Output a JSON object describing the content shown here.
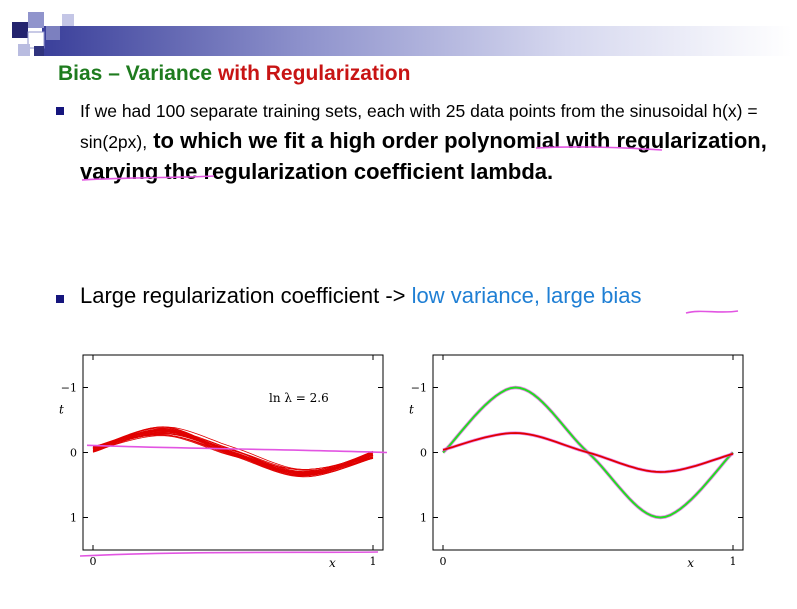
{
  "slide": {
    "title_part1": "Bias – Variance",
    "title_part2": " with Regularization",
    "bullet1_normal": "If we had 100 separate training sets, each with 25 data points from the sinusoidal h(x) = sin(2px),",
    "bullet1_bold": " to which we fit a high order polynomial with regularization, varying the regularization coefficient lambda.",
    "bullet2_normal": "Large regularization coefficient -> ",
    "bullet2_blue": "low variance, large bias"
  },
  "colors": {
    "title_green": "#1e7b1e",
    "title_red": "#c81414",
    "bullet_square": "#15157d",
    "highlight_blue": "#1f7fd4",
    "fit_red": "#e00000",
    "true_green": "#22dd22",
    "pen_magenta": "#e255e2"
  },
  "chart_data": [
    {
      "type": "line",
      "title": "",
      "xlabel": "x",
      "ylabel": "t",
      "xlim": [
        0,
        1
      ],
      "ylim": [
        -1.5,
        1.5
      ],
      "xticks": [
        "0",
        "1"
      ],
      "yticks": [
        "−1",
        "0",
        "1"
      ],
      "annotation": "ln λ = 2.6",
      "series": [
        {
          "values": [
            [
              0,
              0.06
            ],
            [
              0.25,
              0.34
            ],
            [
              0.5,
              0.0
            ],
            [
              0.75,
              -0.32
            ],
            [
              1,
              -0.04
            ]
          ]
        }
      ],
      "ensemble_size": 20
    },
    {
      "type": "line",
      "title": "",
      "xlabel": "x",
      "ylabel": "t",
      "xlim": [
        0,
        1
      ],
      "ylim": [
        -1.5,
        1.5
      ],
      "xticks": [
        "0",
        "1"
      ],
      "yticks": [
        "−1",
        "0",
        "1"
      ],
      "series": [
        {
          "values": [
            [
              0,
              0
            ],
            [
              0.25,
              1.0
            ],
            [
              0.5,
              0.0
            ],
            [
              0.75,
              -1.0
            ],
            [
              1,
              0
            ]
          ]
        },
        {
          "values": [
            [
              0,
              0.04
            ],
            [
              0.25,
              0.3
            ],
            [
              0.5,
              0.0
            ],
            [
              0.75,
              -0.3
            ],
            [
              1,
              -0.02
            ]
          ]
        }
      ]
    }
  ]
}
